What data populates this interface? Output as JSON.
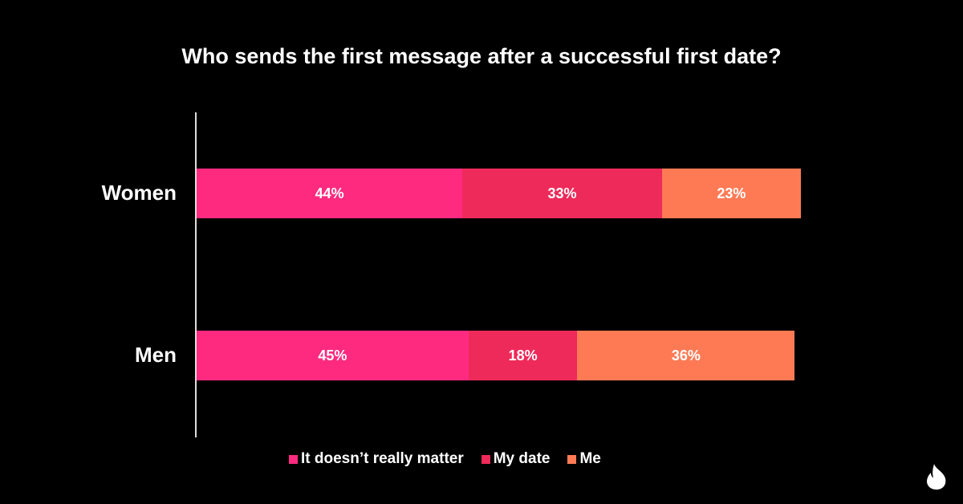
{
  "chart_data": {
    "type": "bar",
    "orientation": "horizontal",
    "stacked": true,
    "title": "Who sends the first message after a successful first date?",
    "categories": [
      "Women",
      "Men"
    ],
    "series": [
      {
        "name": "It doesn’t really matter",
        "color": "#FE2A80",
        "values": [
          44,
          45
        ],
        "labels": [
          "44%",
          "45%"
        ]
      },
      {
        "name": "My date",
        "color": "#EE2A5A",
        "values": [
          33,
          18
        ],
        "labels": [
          "33%",
          "18%"
        ]
      },
      {
        "name": "Me",
        "color": "#FE7A55",
        "values": [
          23,
          36
        ],
        "labels": [
          "23%",
          "36%"
        ]
      }
    ],
    "xlim": [
      0,
      100
    ],
    "grid": false,
    "legend": "bottom"
  }
}
